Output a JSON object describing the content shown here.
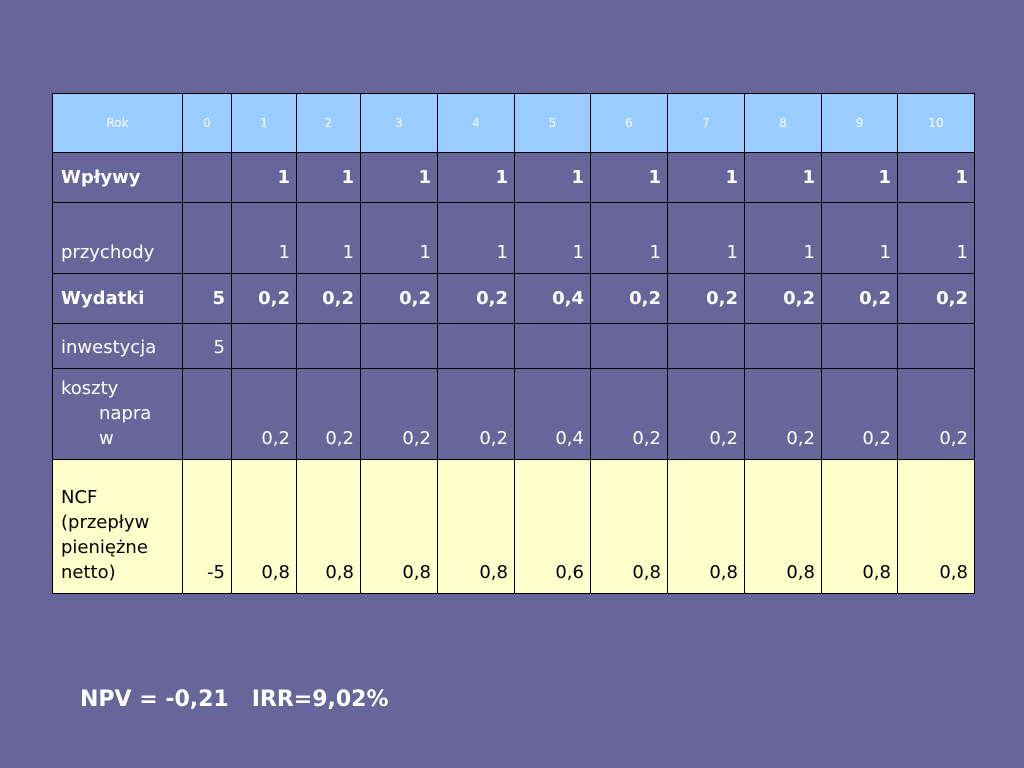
{
  "table": {
    "header": {
      "label": "Rok",
      "years": [
        "0",
        "1",
        "2",
        "3",
        "4",
        "5",
        "6",
        "7",
        "8",
        "9",
        "10"
      ]
    },
    "rows": [
      {
        "key": "wplywy",
        "label": "Wpływy",
        "bold": true,
        "values": [
          "",
          "1",
          "1",
          "1",
          "1",
          "1",
          "1",
          "1",
          "1",
          "1",
          "1"
        ]
      },
      {
        "key": "przychody",
        "label": "przychody",
        "bold": false,
        "values": [
          "",
          "1",
          "1",
          "1",
          "1",
          "1",
          "1",
          "1",
          "1",
          "1",
          "1"
        ]
      },
      {
        "key": "wydatki",
        "label": "Wydatki",
        "bold": true,
        "values": [
          "5",
          "0,2",
          "0,2",
          "0,2",
          "0,2",
          "0,4",
          "0,2",
          "0,2",
          "0,2",
          "0,2",
          "0,2"
        ]
      },
      {
        "key": "inwestycja",
        "label": "inwestycja",
        "bold": false,
        "values": [
          "5",
          "",
          "",
          "",
          "",
          "",
          "",
          "",
          "",
          "",
          ""
        ]
      },
      {
        "key": "koszty",
        "label_lines": [
          "koszty",
          "napra",
          "w"
        ],
        "bold": false,
        "values": [
          "",
          "0,2",
          "0,2",
          "0,2",
          "0,2",
          "0,4",
          "0,2",
          "0,2",
          "0,2",
          "0,2",
          "0,2"
        ]
      },
      {
        "key": "ncf",
        "label_lines": [
          "NCF",
          "(przepływ",
          "pieniężne",
          "netto)"
        ],
        "bold": false,
        "values": [
          "-5",
          "0,8",
          "0,8",
          "0,8",
          "0,8",
          "0,6",
          "0,8",
          "0,8",
          "0,8",
          "0,8",
          "0,8"
        ]
      }
    ]
  },
  "summary": {
    "text": "NPV = -0,21   IRR=9,02%"
  },
  "colors": {
    "background": "#66669a",
    "header_fill": "#99ccff",
    "ncf_fill": "#ffffcc",
    "border": "#000000",
    "text": "#ffffff"
  }
}
